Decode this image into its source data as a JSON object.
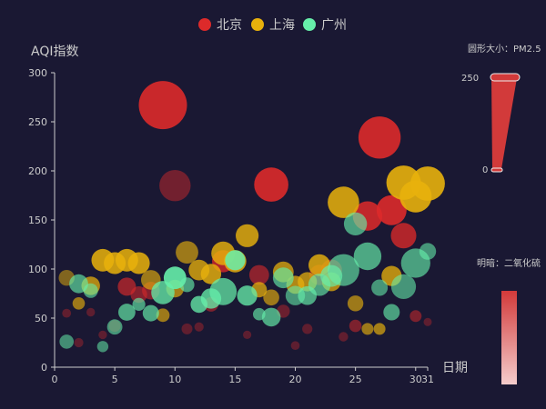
{
  "chart_data": {
    "type": "scatter",
    "subtype": "bubble",
    "xlabel": "日期",
    "ylabel": "AQI指数",
    "xlim": [
      0,
      31
    ],
    "ylim": [
      0,
      300
    ],
    "x_ticks": [
      0,
      5,
      10,
      15,
      20,
      25,
      30,
      31
    ],
    "y_ticks": [
      0,
      50,
      100,
      150,
      200,
      250,
      300
    ],
    "grid": false,
    "legend_position": "top-center",
    "visual_map_size": {
      "label": "圆形大小：PM2.5",
      "max": "250",
      "min": "0",
      "color": "#d94040"
    },
    "visual_map_opacity": {
      "label": "明暗：二氧化硫",
      "color": "#d94040"
    },
    "series": [
      {
        "name": "北京",
        "color": "#dd2a2a",
        "points": [
          {
            "x": 1,
            "y": 55,
            "pm25": 9,
            "so2": 40
          },
          {
            "x": 2,
            "y": 25,
            "pm25": 11,
            "so2": 35
          },
          {
            "x": 3,
            "y": 56,
            "pm25": 7,
            "so2": 30
          },
          {
            "x": 4,
            "y": 33,
            "pm25": 7,
            "so2": 30
          },
          {
            "x": 5,
            "y": 42,
            "pm25": 24,
            "so2": 35
          },
          {
            "x": 6,
            "y": 82,
            "pm25": 58,
            "so2": 70
          },
          {
            "x": 7,
            "y": 74,
            "pm25": 49,
            "so2": 60
          },
          {
            "x": 8,
            "y": 78,
            "pm25": 55,
            "so2": 60
          },
          {
            "x": 9,
            "y": 267,
            "pm25": 216,
            "so2": 100
          },
          {
            "x": 10,
            "y": 185,
            "pm25": 127,
            "so2": 50
          },
          {
            "x": 11,
            "y": 39,
            "pm25": 19,
            "so2": 40
          },
          {
            "x": 12,
            "y": 41,
            "pm25": 11,
            "so2": 40
          },
          {
            "x": 13,
            "y": 64,
            "pm25": 38,
            "so2": 55
          },
          {
            "x": 14,
            "y": 108,
            "pm25": 79,
            "so2": 85
          },
          {
            "x": 15,
            "y": 108,
            "pm25": 63,
            "so2": 85
          },
          {
            "x": 16,
            "y": 33,
            "pm25": 6,
            "so2": 25
          },
          {
            "x": 17,
            "y": 94,
            "pm25": 66,
            "so2": 65
          },
          {
            "x": 18,
            "y": 186,
            "pm25": 142,
            "so2": 100
          },
          {
            "x": 19,
            "y": 57,
            "pm25": 31,
            "so2": 45
          },
          {
            "x": 20,
            "y": 22,
            "pm25": 8,
            "so2": 30
          },
          {
            "x": 21,
            "y": 39,
            "pm25": 15,
            "so2": 40
          },
          {
            "x": 22,
            "y": 94,
            "pm25": 69,
            "so2": 60
          },
          {
            "x": 23,
            "y": 99,
            "pm25": 73,
            "so2": 60
          },
          {
            "x": 24,
            "y": 31,
            "pm25": 12,
            "so2": 40
          },
          {
            "x": 25,
            "y": 42,
            "pm25": 27,
            "so2": 55
          },
          {
            "x": 26,
            "y": 154,
            "pm25": 117,
            "so2": 95
          },
          {
            "x": 27,
            "y": 234,
            "pm25": 185,
            "so2": 100
          },
          {
            "x": 28,
            "y": 160,
            "pm25": 120,
            "so2": 100
          },
          {
            "x": 29,
            "y": 134,
            "pm25": 96,
            "so2": 85
          },
          {
            "x": 30,
            "y": 52,
            "pm25": 24,
            "so2": 55
          },
          {
            "x": 31,
            "y": 46,
            "pm25": 5,
            "so2": 35
          }
        ]
      },
      {
        "name": "上海",
        "color": "#e8b10c",
        "points": [
          {
            "x": 1,
            "y": 91,
            "pm25": 45,
            "so2": 55
          },
          {
            "x": 2,
            "y": 65,
            "pm25": 27,
            "so2": 70
          },
          {
            "x": 3,
            "y": 83,
            "pm25": 60,
            "so2": 80
          },
          {
            "x": 4,
            "y": 109,
            "pm25": 81,
            "so2": 95
          },
          {
            "x": 5,
            "y": 106,
            "pm25": 77,
            "so2": 95
          },
          {
            "x": 6,
            "y": 109,
            "pm25": 81,
            "so2": 95
          },
          {
            "x": 7,
            "y": 106,
            "pm25": 77,
            "so2": 95
          },
          {
            "x": 8,
            "y": 89,
            "pm25": 65,
            "so2": 70
          },
          {
            "x": 9,
            "y": 53,
            "pm25": 33,
            "so2": 70
          },
          {
            "x": 10,
            "y": 80,
            "pm25": 55,
            "so2": 75
          },
          {
            "x": 11,
            "y": 117,
            "pm25": 81,
            "so2": 70
          },
          {
            "x": 12,
            "y": 99,
            "pm25": 71,
            "so2": 85
          },
          {
            "x": 13,
            "y": 95,
            "pm25": 69,
            "so2": 90
          },
          {
            "x": 14,
            "y": 116,
            "pm25": 87,
            "so2": 90
          },
          {
            "x": 15,
            "y": 108,
            "pm25": 80,
            "so2": 90
          },
          {
            "x": 16,
            "y": 134,
            "pm25": 83,
            "so2": 90
          },
          {
            "x": 17,
            "y": 79,
            "pm25": 43,
            "so2": 80
          },
          {
            "x": 18,
            "y": 71,
            "pm25": 46,
            "so2": 70
          },
          {
            "x": 19,
            "y": 97,
            "pm25": 71,
            "so2": 80
          },
          {
            "x": 20,
            "y": 84,
            "pm25": 57,
            "so2": 80
          },
          {
            "x": 21,
            "y": 87,
            "pm25": 63,
            "so2": 80
          },
          {
            "x": 22,
            "y": 104,
            "pm25": 77,
            "so2": 90
          },
          {
            "x": 23,
            "y": 87,
            "pm25": 62,
            "so2": 80
          },
          {
            "x": 24,
            "y": 168,
            "pm25": 128,
            "so2": 95
          },
          {
            "x": 25,
            "y": 65,
            "pm25": 45,
            "so2": 70
          },
          {
            "x": 26,
            "y": 39,
            "pm25": 24,
            "so2": 70
          },
          {
            "x": 27,
            "y": 39,
            "pm25": 24,
            "so2": 75
          },
          {
            "x": 28,
            "y": 93,
            "pm25": 68,
            "so2": 85
          },
          {
            "x": 29,
            "y": 188,
            "pm25": 143,
            "so2": 100
          },
          {
            "x": 30,
            "y": 174,
            "pm25": 131,
            "so2": 100
          },
          {
            "x": 31,
            "y": 187,
            "pm25": 143,
            "so2": 100
          }
        ]
      },
      {
        "name": "广州",
        "color": "#66eeaa",
        "points": [
          {
            "x": 1,
            "y": 26,
            "pm25": 37,
            "so2": 60
          },
          {
            "x": 2,
            "y": 85,
            "pm25": 62,
            "so2": 70
          },
          {
            "x": 3,
            "y": 78,
            "pm25": 38,
            "so2": 65
          },
          {
            "x": 4,
            "y": 21,
            "pm25": 21,
            "so2": 60
          },
          {
            "x": 5,
            "y": 41,
            "pm25": 42,
            "so2": 65
          },
          {
            "x": 6,
            "y": 56,
            "pm25": 52,
            "so2": 75
          },
          {
            "x": 7,
            "y": 64,
            "pm25": 30,
            "so2": 70
          },
          {
            "x": 8,
            "y": 55,
            "pm25": 48,
            "so2": 75
          },
          {
            "x": 9,
            "y": 76,
            "pm25": 85,
            "so2": 85
          },
          {
            "x": 10,
            "y": 91,
            "pm25": 81,
            "so2": 100
          },
          {
            "x": 11,
            "y": 84,
            "pm25": 39,
            "so2": 70
          },
          {
            "x": 12,
            "y": 64,
            "pm25": 51,
            "so2": 85
          },
          {
            "x": 13,
            "y": 70,
            "pm25": 69,
            "so2": 85
          },
          {
            "x": 14,
            "y": 77,
            "pm25": 105,
            "so2": 80
          },
          {
            "x": 15,
            "y": 109,
            "pm25": 68,
            "so2": 95
          },
          {
            "x": 16,
            "y": 73,
            "pm25": 68,
            "so2": 85
          },
          {
            "x": 17,
            "y": 54,
            "pm25": 27,
            "so2": 70
          },
          {
            "x": 18,
            "y": 51,
            "pm25": 61,
            "so2": 75
          },
          {
            "x": 19,
            "y": 91,
            "pm25": 71,
            "so2": 70
          },
          {
            "x": 20,
            "y": 73,
            "pm25": 64,
            "so2": 65
          },
          {
            "x": 21,
            "y": 73,
            "pm25": 61,
            "so2": 75
          },
          {
            "x": 22,
            "y": 84,
            "pm25": 79,
            "so2": 70
          },
          {
            "x": 23,
            "y": 93,
            "pm25": 77,
            "so2": 75
          },
          {
            "x": 24,
            "y": 99,
            "pm25": 130,
            "so2": 70
          },
          {
            "x": 25,
            "y": 146,
            "pm25": 84,
            "so2": 70
          },
          {
            "x": 26,
            "y": 113,
            "pm25": 108,
            "so2": 75
          },
          {
            "x": 27,
            "y": 81,
            "pm25": 48,
            "so2": 65
          },
          {
            "x": 28,
            "y": 56,
            "pm25": 48,
            "so2": 70
          },
          {
            "x": 29,
            "y": 82,
            "pm25": 92,
            "so2": 65
          },
          {
            "x": 30,
            "y": 106,
            "pm25": 116,
            "so2": 70
          },
          {
            "x": 31,
            "y": 118,
            "pm25": 50,
            "so2": 65
          }
        ]
      }
    ]
  }
}
